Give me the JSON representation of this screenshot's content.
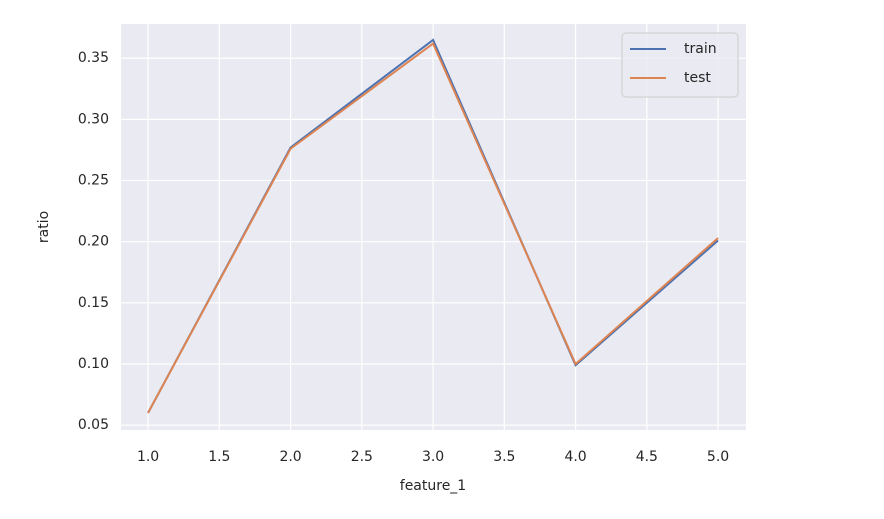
{
  "chart_data": {
    "type": "line",
    "x_label": "feature_1",
    "y_label": "ratio",
    "x": [
      1,
      2,
      3,
      4,
      5
    ],
    "series": [
      {
        "name": "train",
        "color": "#4c72b0",
        "values": [
          0.06,
          0.277,
          0.365,
          0.099,
          0.201
        ]
      },
      {
        "name": "test",
        "color": "#dd8452",
        "values": [
          0.06,
          0.276,
          0.362,
          0.1,
          0.203
        ]
      }
    ],
    "xlim": [
      0.81,
      5.196
    ],
    "xticks": [
      {
        "value": 1,
        "label": "1.0"
      },
      1.5,
      {
        "value": 2,
        "label": "2.0"
      },
      2.5,
      {
        "value": 3,
        "label": "3.0"
      },
      3.5,
      {
        "value": 4,
        "label": "4.0"
      },
      4.5,
      {
        "value": 5,
        "label": "5.0"
      }
    ],
    "ylim": [
      0.046,
      0.378
    ],
    "yticks": [
      0.05,
      {
        "value": 0.1,
        "label": "0.10"
      },
      0.15,
      {
        "value": 0.2,
        "label": "0.20"
      },
      0.25,
      {
        "value": 0.3,
        "label": "0.30"
      },
      0.35
    ],
    "grid": true,
    "legend": "upper right"
  }
}
